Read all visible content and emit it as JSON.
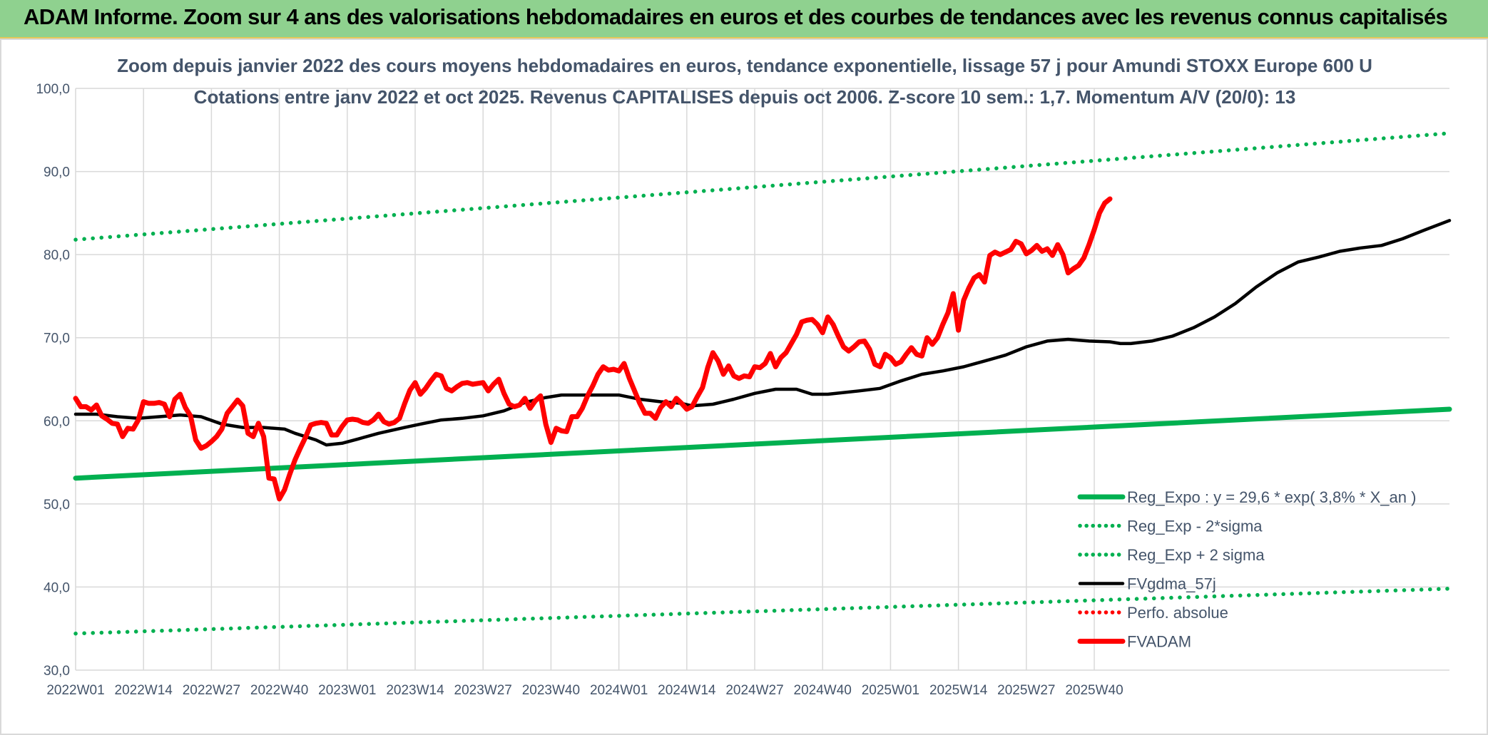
{
  "banner": {
    "title": "ADAM Informe. Zoom sur 4 ans des valorisations hebdomadaires en euros et des courbes de tendances avec les revenus connus capitalisés"
  },
  "colors": {
    "banner_bg": "#8fd18f",
    "reg_expo": "#00b050",
    "band": "#00b050",
    "gdma": "#000000",
    "perfo": "#ff0000",
    "fvadam": "#ff0000",
    "grid": "#d9d9d9",
    "title_text": "#44546a"
  },
  "chart_data": {
    "type": "line",
    "title": "Zoom depuis janvier 2022 des cours moyens hebdomadaires en euros, tendance exponentielle, lissage 57 j pour Amundi STOXX Europe 600 U",
    "subtitle": "Cotations entre janv 2022 et oct 2025. Revenus CAPITALISES depuis oct 2006. Z-score 10 sem.: 1,7. Momentum A/V (20/0): 13",
    "xlabel": "",
    "ylabel": "",
    "ylim": [
      30,
      100
    ],
    "y_ticks": [
      "30,0",
      "40,0",
      "50,0",
      "60,0",
      "70,0",
      "80,0",
      "90,0",
      "100,0"
    ],
    "x_ticks": [
      "2022W01",
      "2022W14",
      "2022W27",
      "2022W40",
      "2023W01",
      "2023W14",
      "2023W27",
      "2023W40",
      "2024W01",
      "2024W14",
      "2024W27",
      "2024W40",
      "2025W01",
      "2025W14",
      "2025W27",
      "2025W40"
    ],
    "x_tick_index": [
      0,
      13,
      26,
      39,
      52,
      65,
      78,
      91,
      104,
      117,
      130,
      143,
      156,
      169,
      182,
      195
    ],
    "n_weeks": 201,
    "grid": true,
    "legend_position": "bottom-right",
    "series": [
      {
        "name": "Reg_Expo : y = 29,6 * exp( 3,8% *  X_an )",
        "style": "solid-thick",
        "color": "#00b050",
        "points": [
          [
            0,
            53.1
          ],
          [
            200,
            61.4
          ]
        ]
      },
      {
        "name": "Reg_Exp - 2*sigma",
        "style": "dotted",
        "color": "#00b050",
        "points": [
          [
            0,
            34.4
          ],
          [
            200,
            39.8
          ]
        ]
      },
      {
        "name": "Reg_Exp + 2 sigma",
        "style": "dotted",
        "color": "#00b050",
        "points": [
          [
            0,
            81.8
          ],
          [
            200,
            94.6
          ]
        ]
      },
      {
        "name": "FVgdma_57j",
        "style": "solid",
        "color": "#000000",
        "points": [
          [
            0,
            60.8
          ],
          [
            4,
            60.8
          ],
          [
            8,
            60.5
          ],
          [
            12,
            60.3
          ],
          [
            16,
            60.5
          ],
          [
            20,
            60.7
          ],
          [
            24,
            60.5
          ],
          [
            28,
            59.6
          ],
          [
            32,
            59.2
          ],
          [
            36,
            59.2
          ],
          [
            40,
            59.0
          ],
          [
            42,
            58.5
          ],
          [
            46,
            57.7
          ],
          [
            48,
            57.1
          ],
          [
            51,
            57.3
          ],
          [
            54,
            57.8
          ],
          [
            58,
            58.5
          ],
          [
            63,
            59.2
          ],
          [
            66,
            59.6
          ],
          [
            70,
            60.1
          ],
          [
            74,
            60.3
          ],
          [
            78,
            60.6
          ],
          [
            82,
            61.2
          ],
          [
            86,
            62.2
          ],
          [
            90,
            62.8
          ],
          [
            93,
            63.1
          ],
          [
            97,
            63.1
          ],
          [
            104,
            63.1
          ],
          [
            108,
            62.6
          ],
          [
            112,
            62.3
          ],
          [
            116,
            62.1
          ],
          [
            118,
            61.8
          ],
          [
            122,
            62.0
          ],
          [
            126,
            62.6
          ],
          [
            130,
            63.3
          ],
          [
            134,
            63.8
          ],
          [
            138,
            63.8
          ],
          [
            141,
            63.2
          ],
          [
            144,
            63.2
          ],
          [
            150,
            63.6
          ],
          [
            154,
            63.9
          ],
          [
            158,
            64.8
          ],
          [
            162,
            65.6
          ],
          [
            166,
            66.0
          ],
          [
            170,
            66.5
          ],
          [
            174,
            67.2
          ],
          [
            178,
            67.9
          ],
          [
            182,
            68.9
          ],
          [
            186,
            69.6
          ],
          [
            190,
            69.8
          ],
          [
            194,
            69.6
          ],
          [
            198,
            69.5
          ],
          [
            200,
            69.3
          ],
          [
            202,
            69.3
          ],
          [
            206,
            69.6
          ],
          [
            210,
            70.2
          ],
          [
            214,
            71.2
          ],
          [
            218,
            72.5
          ],
          [
            222,
            74.1
          ],
          [
            226,
            76.1
          ],
          [
            230,
            77.8
          ],
          [
            234,
            79.1
          ],
          [
            238,
            79.7
          ],
          [
            242,
            80.4
          ],
          [
            246,
            80.8
          ],
          [
            250,
            81.1
          ],
          [
            254,
            81.9
          ],
          [
            258,
            82.9
          ],
          [
            263,
            84.1
          ]
        ]
      },
      {
        "name": "Perfo. absolue",
        "style": "dotted",
        "color": "#ff0000",
        "points": []
      },
      {
        "name": "FVADAM",
        "style": "solid-thick",
        "color": "#ff0000",
        "points": [
          [
            0,
            62.7
          ],
          [
            1,
            61.7
          ],
          [
            2,
            61.7
          ],
          [
            3,
            61.3
          ],
          [
            4,
            61.9
          ],
          [
            5,
            60.6
          ],
          [
            6,
            60.2
          ],
          [
            7,
            59.7
          ],
          [
            8,
            59.6
          ],
          [
            9,
            58.1
          ],
          [
            10,
            59.1
          ],
          [
            11,
            59.0
          ],
          [
            12,
            60.1
          ],
          [
            13,
            62.3
          ],
          [
            14,
            62.1
          ],
          [
            15,
            62.1
          ],
          [
            16,
            62.2
          ],
          [
            17,
            62.0
          ],
          [
            18,
            60.5
          ],
          [
            19,
            62.6
          ],
          [
            20,
            63.2
          ],
          [
            21,
            61.6
          ],
          [
            22,
            60.6
          ],
          [
            23,
            57.7
          ],
          [
            24,
            56.7
          ],
          [
            25,
            57.0
          ],
          [
            26,
            57.5
          ],
          [
            27,
            58.1
          ],
          [
            28,
            59.0
          ],
          [
            29,
            60.9
          ],
          [
            30,
            61.7
          ],
          [
            31,
            62.5
          ],
          [
            32,
            61.8
          ],
          [
            33,
            58.5
          ],
          [
            34,
            58.1
          ],
          [
            35,
            59.7
          ],
          [
            36,
            58.1
          ],
          [
            37,
            53.1
          ],
          [
            38,
            53.0
          ],
          [
            39,
            50.6
          ],
          [
            40,
            51.7
          ],
          [
            41,
            53.6
          ],
          [
            42,
            55.3
          ],
          [
            43,
            56.7
          ],
          [
            44,
            58.0
          ],
          [
            45,
            59.5
          ],
          [
            46,
            59.7
          ],
          [
            47,
            59.8
          ],
          [
            48,
            59.7
          ],
          [
            49,
            58.3
          ],
          [
            50,
            58.3
          ],
          [
            51,
            59.3
          ],
          [
            52,
            60.1
          ],
          [
            53,
            60.2
          ],
          [
            54,
            60.1
          ],
          [
            55,
            59.8
          ],
          [
            56,
            59.7
          ],
          [
            57,
            60.1
          ],
          [
            58,
            60.8
          ],
          [
            59,
            59.9
          ],
          [
            60,
            59.6
          ],
          [
            61,
            59.8
          ],
          [
            62,
            60.3
          ],
          [
            63,
            62.1
          ],
          [
            64,
            63.7
          ],
          [
            65,
            64.6
          ],
          [
            66,
            63.2
          ],
          [
            67,
            63.9
          ],
          [
            68,
            64.8
          ],
          [
            69,
            65.6
          ],
          [
            70,
            65.4
          ],
          [
            71,
            63.9
          ],
          [
            72,
            63.6
          ],
          [
            73,
            64.1
          ],
          [
            74,
            64.5
          ],
          [
            75,
            64.6
          ],
          [
            76,
            64.4
          ],
          [
            77,
            64.5
          ],
          [
            78,
            64.6
          ],
          [
            79,
            63.6
          ],
          [
            80,
            64.4
          ],
          [
            81,
            65.0
          ],
          [
            82,
            63.3
          ],
          [
            83,
            62.0
          ],
          [
            84,
            61.7
          ],
          [
            85,
            61.9
          ],
          [
            86,
            62.7
          ],
          [
            87,
            61.5
          ],
          [
            88,
            62.4
          ],
          [
            89,
            63.0
          ],
          [
            90,
            59.6
          ],
          [
            91,
            57.4
          ],
          [
            92,
            59.1
          ],
          [
            93,
            58.8
          ],
          [
            94,
            58.7
          ],
          [
            95,
            60.5
          ],
          [
            96,
            60.5
          ],
          [
            97,
            61.5
          ],
          [
            98,
            63.0
          ],
          [
            99,
            64.2
          ],
          [
            100,
            65.6
          ],
          [
            101,
            66.5
          ],
          [
            102,
            66.1
          ],
          [
            103,
            66.2
          ],
          [
            104,
            66.0
          ],
          [
            105,
            66.9
          ],
          [
            106,
            65.1
          ],
          [
            107,
            63.6
          ],
          [
            108,
            62.1
          ],
          [
            109,
            60.9
          ],
          [
            110,
            60.9
          ],
          [
            111,
            60.3
          ],
          [
            112,
            61.6
          ],
          [
            113,
            62.3
          ],
          [
            114,
            61.7
          ],
          [
            115,
            62.7
          ],
          [
            116,
            62.1
          ],
          [
            117,
            61.4
          ],
          [
            118,
            61.7
          ],
          [
            119,
            62.9
          ],
          [
            120,
            64.0
          ],
          [
            121,
            66.4
          ],
          [
            122,
            68.2
          ],
          [
            123,
            67.2
          ],
          [
            124,
            65.6
          ],
          [
            125,
            66.6
          ],
          [
            126,
            65.4
          ],
          [
            127,
            65.1
          ],
          [
            128,
            65.4
          ],
          [
            129,
            65.3
          ],
          [
            130,
            66.5
          ],
          [
            131,
            66.4
          ],
          [
            132,
            66.9
          ],
          [
            133,
            68.1
          ],
          [
            134,
            66.5
          ],
          [
            135,
            67.6
          ],
          [
            136,
            68.2
          ],
          [
            137,
            69.3
          ],
          [
            138,
            70.4
          ],
          [
            139,
            71.9
          ],
          [
            140,
            72.1
          ],
          [
            141,
            72.2
          ],
          [
            142,
            71.6
          ],
          [
            143,
            70.6
          ],
          [
            144,
            72.5
          ],
          [
            145,
            71.6
          ],
          [
            146,
            70.2
          ],
          [
            147,
            68.9
          ],
          [
            148,
            68.4
          ],
          [
            149,
            68.9
          ],
          [
            150,
            69.5
          ],
          [
            151,
            69.6
          ],
          [
            152,
            68.6
          ],
          [
            153,
            66.8
          ],
          [
            154,
            66.5
          ],
          [
            155,
            68.0
          ],
          [
            156,
            67.6
          ],
          [
            157,
            66.8
          ],
          [
            158,
            67.1
          ],
          [
            159,
            68.0
          ],
          [
            160,
            68.8
          ],
          [
            161,
            68.0
          ],
          [
            162,
            67.8
          ],
          [
            163,
            70.0
          ],
          [
            164,
            69.2
          ],
          [
            165,
            70.0
          ],
          [
            166,
            71.6
          ],
          [
            167,
            73.0
          ],
          [
            168,
            75.3
          ],
          [
            169,
            70.9
          ],
          [
            170,
            74.5
          ],
          [
            171,
            76.0
          ],
          [
            172,
            77.2
          ],
          [
            173,
            77.6
          ],
          [
            174,
            76.7
          ],
          [
            175,
            79.9
          ],
          [
            176,
            80.3
          ],
          [
            177,
            80.0
          ],
          [
            178,
            80.3
          ],
          [
            179,
            80.6
          ],
          [
            180,
            81.6
          ],
          [
            181,
            81.3
          ],
          [
            182,
            80.1
          ],
          [
            183,
            80.5
          ],
          [
            184,
            81.1
          ],
          [
            185,
            80.4
          ],
          [
            186,
            80.7
          ],
          [
            187,
            79.9
          ],
          [
            188,
            81.2
          ],
          [
            189,
            80.0
          ],
          [
            190,
            77.8
          ],
          [
            191,
            78.3
          ],
          [
            192,
            78.7
          ],
          [
            193,
            79.6
          ],
          [
            194,
            81.2
          ],
          [
            195,
            83.0
          ],
          [
            196,
            85.0
          ],
          [
            197,
            86.2
          ],
          [
            198,
            86.7
          ]
        ]
      }
    ]
  }
}
